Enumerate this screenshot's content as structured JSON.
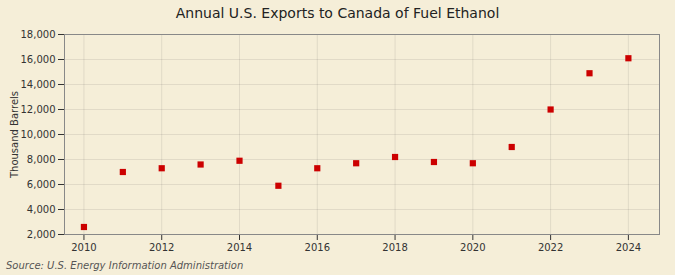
{
  "chart_data": {
    "type": "scatter",
    "title": "Annual U.S. Exports to Canada of Fuel Ethanol",
    "ylabel": "Thousand Barrels",
    "annotations": [
      "Source: U.S. Energy Information Administration"
    ],
    "x": [
      2010,
      2011,
      2012,
      2013,
      2014,
      2015,
      2016,
      2017,
      2018,
      2019,
      2020,
      2021,
      2022,
      2023,
      2024
    ],
    "values": [
      2600,
      7000,
      7300,
      7600,
      7900,
      5900,
      7300,
      7700,
      8200,
      7800,
      7700,
      9000,
      12000,
      14900,
      16100
    ],
    "color": "#cc0000",
    "marker": "square",
    "xlim": [
      2009.5,
      2024.8
    ],
    "xticks": [
      2010,
      2012,
      2014,
      2016,
      2018,
      2020,
      2022,
      2024
    ],
    "ylim": [
      2000,
      18000
    ],
    "yticks": [
      {
        "value": 2000,
        "label": "2,000"
      },
      {
        "value": 4000,
        "label": "4,000"
      },
      {
        "value": 6000,
        "label": "6,000"
      },
      {
        "value": 8000,
        "label": "8,000"
      },
      {
        "value": 10000,
        "label": "10,000"
      },
      {
        "value": 12000,
        "label": "12,000"
      },
      {
        "value": 14000,
        "label": "14,000"
      },
      {
        "value": 16000,
        "label": "16,000"
      },
      {
        "value": 18000,
        "label": "18,000"
      }
    ],
    "grid": true
  }
}
